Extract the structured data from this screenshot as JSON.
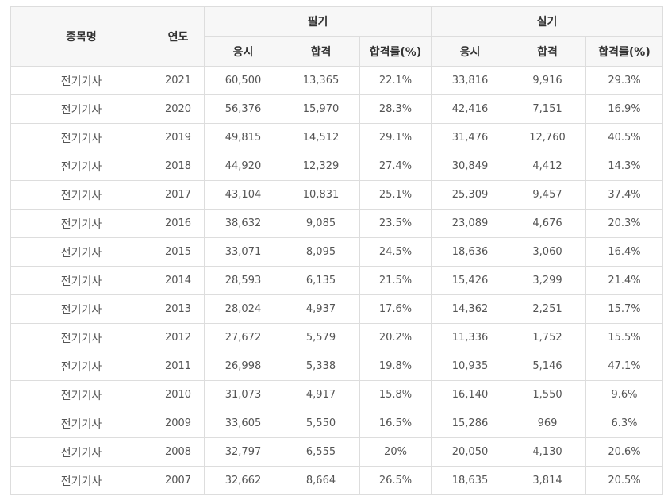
{
  "table": {
    "headers": {
      "name": "종목명",
      "year": "연도",
      "written": "필기",
      "practical": "실기",
      "sub": {
        "applicants": "응시",
        "passed": "합격",
        "rate": "합격률(%)"
      }
    },
    "rows": [
      {
        "name": "전기기사",
        "year": "2021",
        "w_app": "60,500",
        "w_pass": "13,365",
        "w_rate": "22.1%",
        "p_app": "33,816",
        "p_pass": "9,916",
        "p_rate": "29.3%"
      },
      {
        "name": "전기기사",
        "year": "2020",
        "w_app": "56,376",
        "w_pass": "15,970",
        "w_rate": "28.3%",
        "p_app": "42,416",
        "p_pass": "7,151",
        "p_rate": "16.9%"
      },
      {
        "name": "전기기사",
        "year": "2019",
        "w_app": "49,815",
        "w_pass": "14,512",
        "w_rate": "29.1%",
        "p_app": "31,476",
        "p_pass": "12,760",
        "p_rate": "40.5%"
      },
      {
        "name": "전기기사",
        "year": "2018",
        "w_app": "44,920",
        "w_pass": "12,329",
        "w_rate": "27.4%",
        "p_app": "30,849",
        "p_pass": "4,412",
        "p_rate": "14.3%"
      },
      {
        "name": "전기기사",
        "year": "2017",
        "w_app": "43,104",
        "w_pass": "10,831",
        "w_rate": "25.1%",
        "p_app": "25,309",
        "p_pass": "9,457",
        "p_rate": "37.4%"
      },
      {
        "name": "전기기사",
        "year": "2016",
        "w_app": "38,632",
        "w_pass": "9,085",
        "w_rate": "23.5%",
        "p_app": "23,089",
        "p_pass": "4,676",
        "p_rate": "20.3%"
      },
      {
        "name": "전기기사",
        "year": "2015",
        "w_app": "33,071",
        "w_pass": "8,095",
        "w_rate": "24.5%",
        "p_app": "18,636",
        "p_pass": "3,060",
        "p_rate": "16.4%"
      },
      {
        "name": "전기기사",
        "year": "2014",
        "w_app": "28,593",
        "w_pass": "6,135",
        "w_rate": "21.5%",
        "p_app": "15,426",
        "p_pass": "3,299",
        "p_rate": "21.4%"
      },
      {
        "name": "전기기사",
        "year": "2013",
        "w_app": "28,024",
        "w_pass": "4,937",
        "w_rate": "17.6%",
        "p_app": "14,362",
        "p_pass": "2,251",
        "p_rate": "15.7%"
      },
      {
        "name": "전기기사",
        "year": "2012",
        "w_app": "27,672",
        "w_pass": "5,579",
        "w_rate": "20.2%",
        "p_app": "11,336",
        "p_pass": "1,752",
        "p_rate": "15.5%"
      },
      {
        "name": "전기기사",
        "year": "2011",
        "w_app": "26,998",
        "w_pass": "5,338",
        "w_rate": "19.8%",
        "p_app": "10,935",
        "p_pass": "5,146",
        "p_rate": "47.1%"
      },
      {
        "name": "전기기사",
        "year": "2010",
        "w_app": "31,073",
        "w_pass": "4,917",
        "w_rate": "15.8%",
        "p_app": "16,140",
        "p_pass": "1,550",
        "p_rate": "9.6%"
      },
      {
        "name": "전기기사",
        "year": "2009",
        "w_app": "33,605",
        "w_pass": "5,550",
        "w_rate": "16.5%",
        "p_app": "15,286",
        "p_pass": "969",
        "p_rate": "6.3%"
      },
      {
        "name": "전기기사",
        "year": "2008",
        "w_app": "32,797",
        "w_pass": "6,555",
        "w_rate": "20%",
        "p_app": "20,050",
        "p_pass": "4,130",
        "p_rate": "20.6%"
      },
      {
        "name": "전기기사",
        "year": "2007",
        "w_app": "32,662",
        "w_pass": "8,664",
        "w_rate": "26.5%",
        "p_app": "18,635",
        "p_pass": "3,814",
        "p_rate": "20.5%"
      }
    ]
  }
}
